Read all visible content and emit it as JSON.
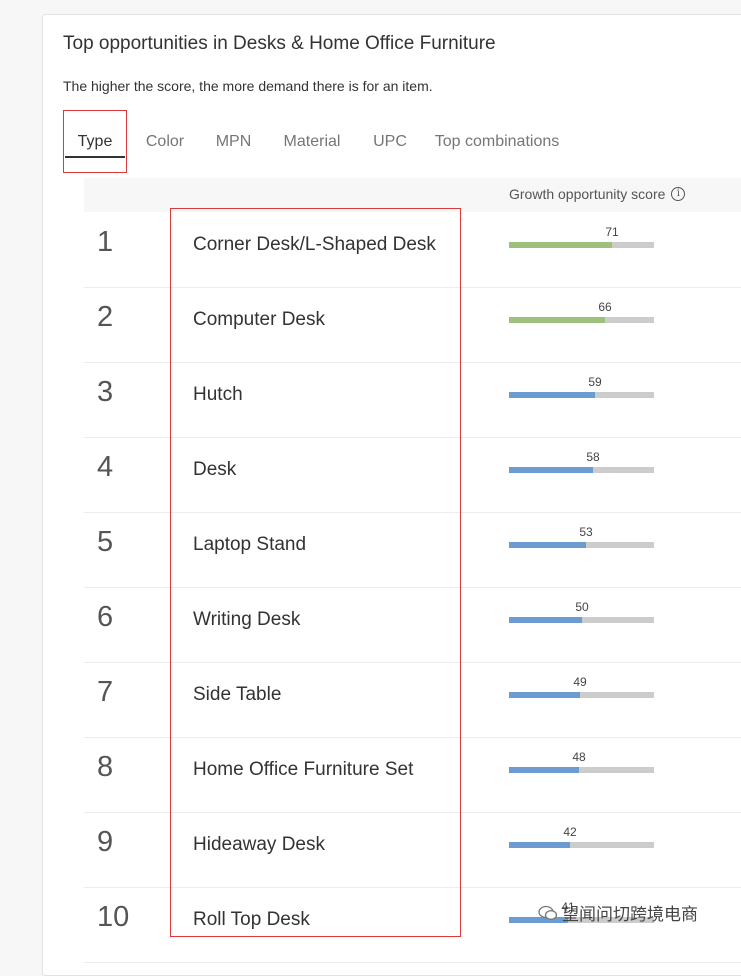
{
  "header": {
    "title": "Top opportunities in Desks & Home Office Furniture",
    "subtitle": "The higher the score, the more demand there is for an item."
  },
  "tabs": [
    {
      "label": "Type",
      "active": true
    },
    {
      "label": "Color",
      "active": false
    },
    {
      "label": "MPN",
      "active": false
    },
    {
      "label": "Material",
      "active": false
    },
    {
      "label": "UPC",
      "active": false
    },
    {
      "label": "Top combinations",
      "active": false
    }
  ],
  "table": {
    "score_header": "Growth opportunity score",
    "info_icon": "info-icon",
    "colors": {
      "high": "#9dc07a",
      "normal": "#6c9bcf",
      "track": "#cccccc"
    },
    "rows": [
      {
        "rank": "1",
        "name": "Corner Desk/L-Shaped Desk",
        "score": 71
      },
      {
        "rank": "2",
        "name": "Computer Desk",
        "score": 66
      },
      {
        "rank": "3",
        "name": "Hutch",
        "score": 59
      },
      {
        "rank": "4",
        "name": "Desk",
        "score": 58
      },
      {
        "rank": "5",
        "name": "Laptop Stand",
        "score": 53
      },
      {
        "rank": "6",
        "name": "Writing Desk",
        "score": 50
      },
      {
        "rank": "7",
        "name": "Side Table",
        "score": 49
      },
      {
        "rank": "8",
        "name": "Home Office Furniture Set",
        "score": 48
      },
      {
        "rank": "9",
        "name": "Hideaway Desk",
        "score": 42
      },
      {
        "rank": "10",
        "name": "Roll Top Desk",
        "score": 41
      }
    ]
  },
  "watermark": {
    "text": "望闻问切跨境电商",
    "icon": "wechat-icon"
  }
}
